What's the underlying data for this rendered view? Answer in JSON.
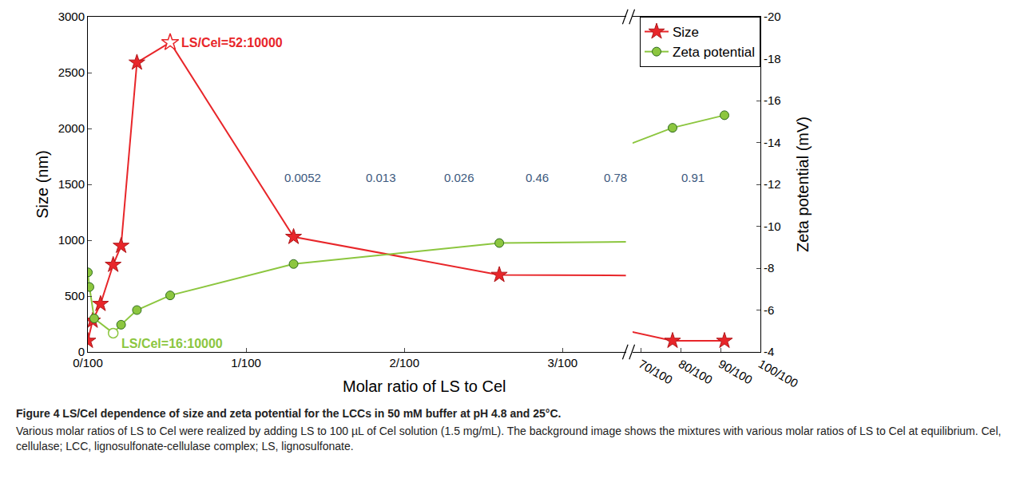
{
  "chart_data": {
    "type": "line",
    "x_label": "Molar ratio of LS to Cel",
    "y_label": "Size (nm)",
    "y2_label": "Zeta potential (mV)",
    "xlim": [
      [
        0,
        0.034
      ],
      [
        0.68,
        1.0
      ]
    ],
    "xticks": [
      {
        "value": 0,
        "label": "0/100"
      },
      {
        "value": 0.01,
        "label": "1/100"
      },
      {
        "value": 0.02,
        "label": "2/100"
      },
      {
        "value": 0.03,
        "label": "3/100"
      },
      {
        "value": 0.7,
        "label": "70/100"
      },
      {
        "value": 0.8,
        "label": "80/100"
      },
      {
        "value": 0.9,
        "label": "90/100"
      },
      {
        "value": 1.0,
        "label": "100/100"
      }
    ],
    "ylim": [
      0,
      3000
    ],
    "yticks": [
      0,
      500,
      1000,
      1500,
      2000,
      2500,
      3000
    ],
    "y2lim": [
      -4,
      -20
    ],
    "y2ticks": [
      -4,
      -6,
      -8,
      -10,
      -12,
      -14,
      -16,
      -18,
      -20
    ],
    "grid": false,
    "legend": "upper right",
    "series": [
      {
        "name": "Size",
        "color": "#e8262a",
        "marker": "star",
        "line_style": "solid",
        "x": [
          0,
          0.0003,
          0.0008,
          0.0016,
          0.0021,
          0.0031,
          0.0052,
          0.013,
          0.026,
          0.78,
          0.91
        ],
        "values": [
          100,
          280,
          430,
          780,
          950,
          2590,
          2770,
          1030,
          690,
          100,
          100
        ]
      },
      {
        "name": "Zeta potential",
        "color": "#8cc63f",
        "marker": "circle",
        "line_style": "solid",
        "axis": "y2",
        "x": [
          0,
          0.0001,
          0.0004,
          0.0016,
          0.0021,
          0.0031,
          0.0052,
          0.013,
          0.026,
          0.78,
          0.91
        ],
        "values": [
          -7.8,
          -7.1,
          -5.6,
          -4.9,
          -5.3,
          -6.0,
          -6.7,
          -8.2,
          -9.2,
          -14.7,
          -15.3
        ]
      }
    ],
    "annotations": [
      {
        "text": "LS/Cel=52:10000",
        "series": "Size",
        "x": 0.0052,
        "y": 2770,
        "color": "#e8262a"
      },
      {
        "text": "LS/Cel=16:10000",
        "series": "Zeta potential",
        "x": 0.0016,
        "y": -4.9,
        "color": "#8cc63f"
      }
    ],
    "image_labels": [
      "0.0052",
      "0.013",
      "0.026",
      "0.46",
      "0.78",
      "0.91"
    ],
    "caption_title": "Figure 4 LS/Cel dependence of size and zeta potential for the LCCs in 50 mM buffer at pH 4.8 and 25°C.",
    "caption": "Various molar ratios of LS to Cel were realized by adding LS to 100 µL of Cel solution (1.5 mg/mL). The background image shows the mixtures with various molar ratios of LS to Cel at equilibrium. Cel, cellulase; LCC, lignosulfonate-cellulase complex; LS, lignosulfonate."
  }
}
